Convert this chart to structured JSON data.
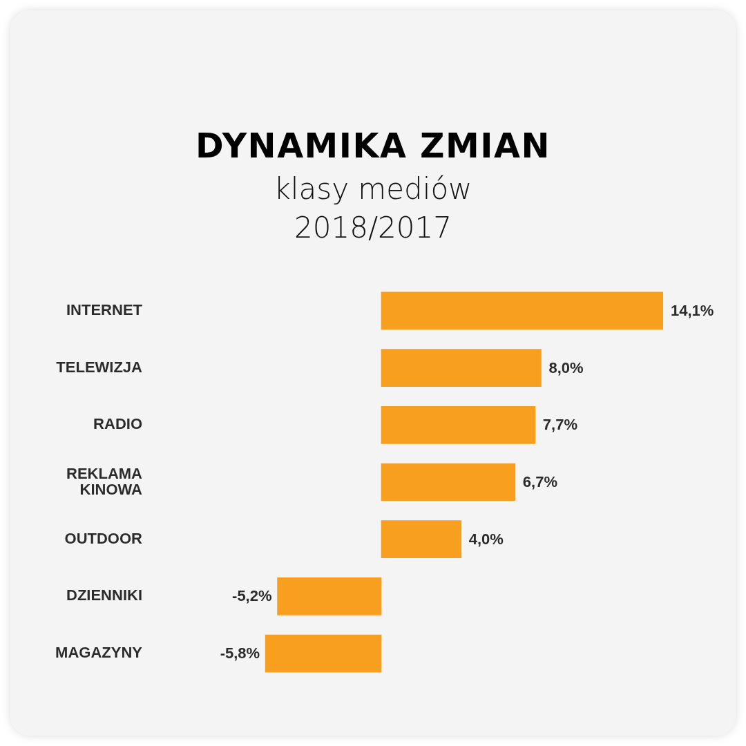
{
  "chart_data": {
    "type": "bar",
    "orientation": "horizontal",
    "title": "DYNAMIKA ZMIAN",
    "subtitle": "klasy mediów\n2018/2017",
    "categories": [
      "INTERNET",
      "TELEWIZJA",
      "RADIO",
      "REKLAMA KINOWA",
      "OUTDOOR",
      "DZIENNIKI",
      "MAGAZYNY"
    ],
    "values": [
      14.1,
      8.0,
      7.7,
      6.7,
      4.0,
      -5.2,
      -5.8
    ],
    "value_labels": [
      "14,1%",
      "8,0%",
      "7,7%",
      "6,7%",
      "4,0%",
      "-5,2%",
      "-5,8%"
    ],
    "color": "#f99f1f",
    "tick_labels": "y"
  }
}
